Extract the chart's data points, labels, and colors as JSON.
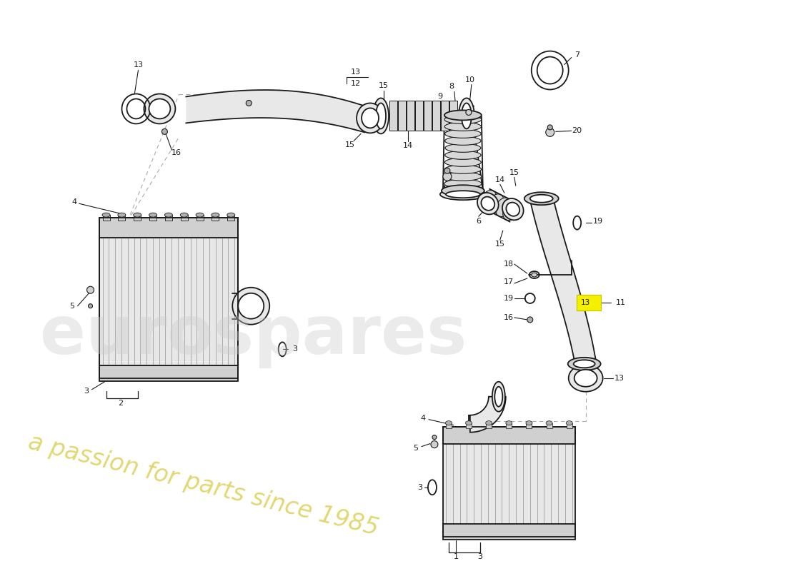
{
  "bg": "#ffffff",
  "lc": "#1a1a1a",
  "gray_light": "#e8e8e8",
  "gray_mid": "#d0d0d0",
  "gray_dark": "#b0b0b0",
  "fin_color": "#aaaaaa",
  "yellow_box": "#f5f000",
  "yellow_box_edge": "#c8c800"
}
